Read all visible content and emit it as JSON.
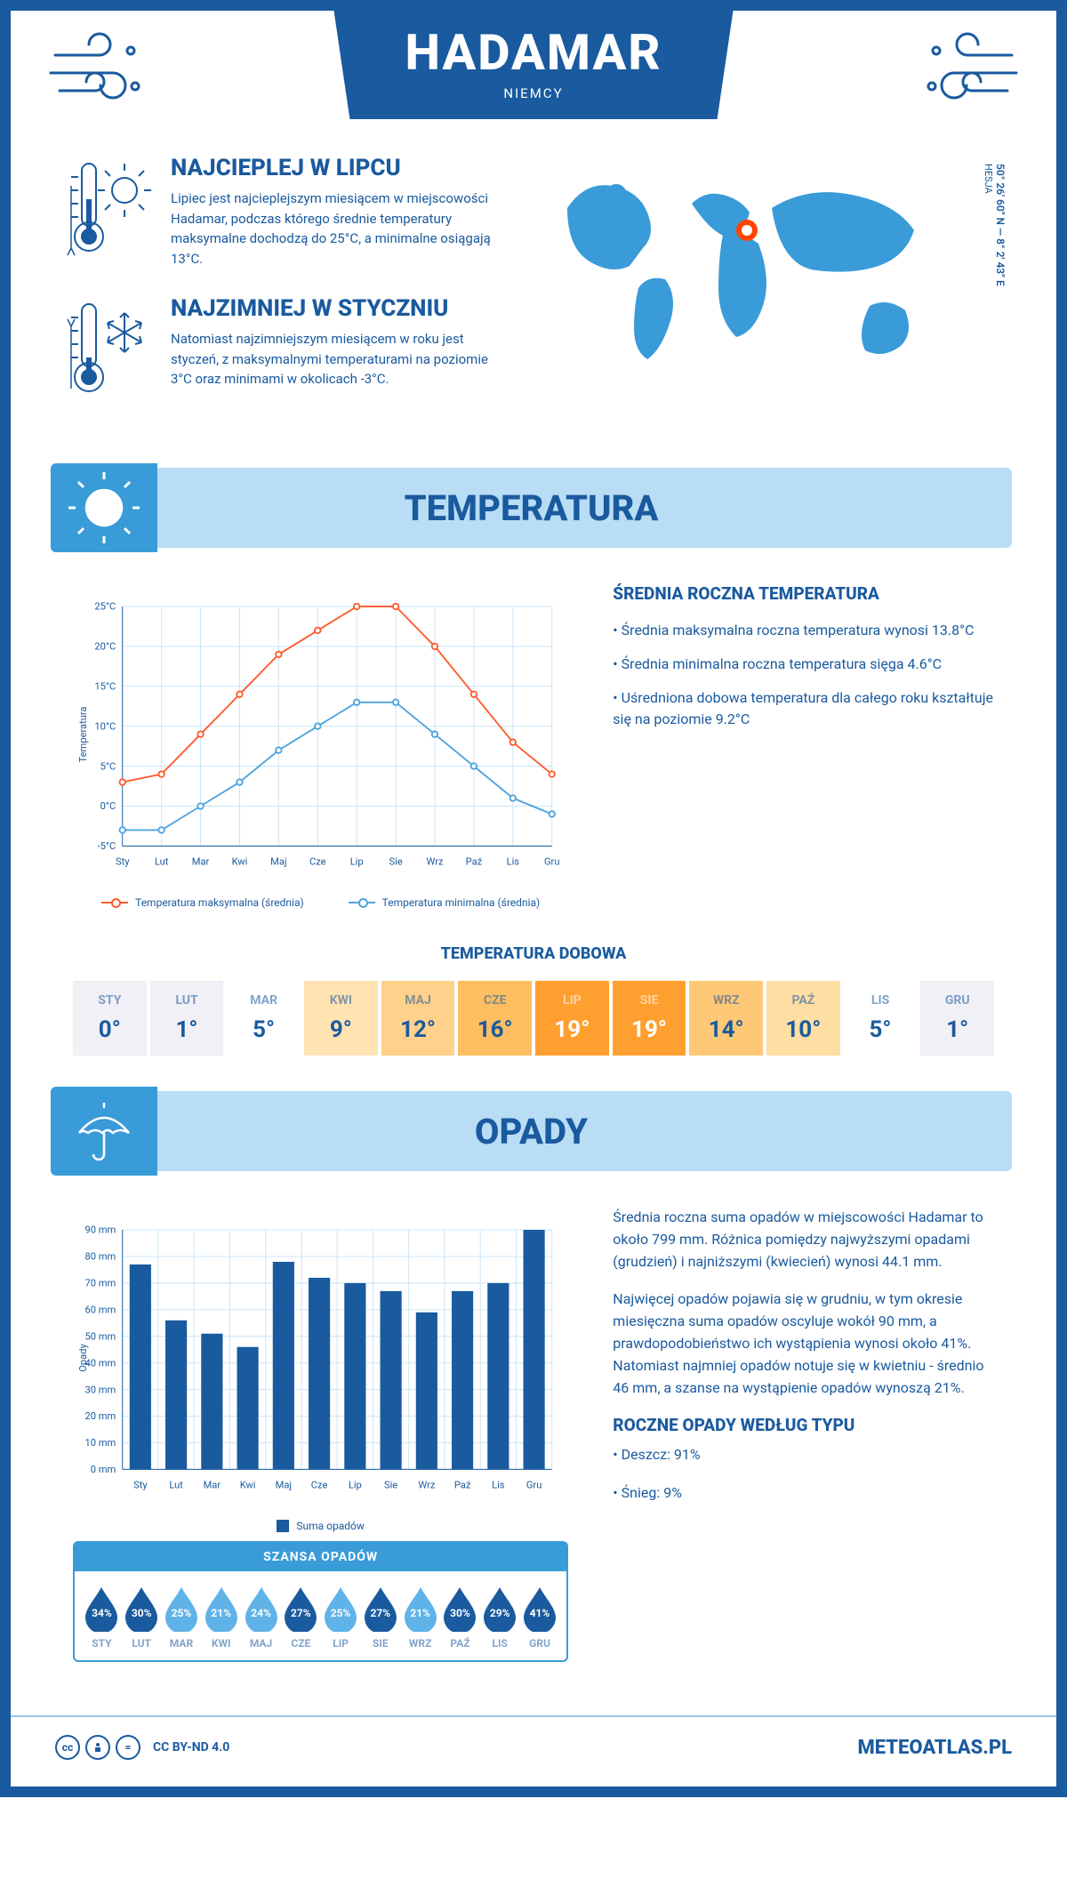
{
  "header": {
    "title": "HADAMAR",
    "subtitle": "NIEMCY"
  },
  "coords": {
    "text": "50° 26' 60\" N — 8° 2' 43\" E",
    "region": "HESJA"
  },
  "facts": {
    "warm": {
      "title": "NAJCIEPLEJ W LIPCU",
      "body": "Lipiec jest najcieplejszym miesiącem w miejscowości Hadamar, podczas którego średnie temperatury maksymalne dochodzą do 25°C, a minimalne osiągają 13°C."
    },
    "cold": {
      "title": "NAJZIMNIEJ W STYCZNIU",
      "body": "Natomiast najzimniejszym miesiącem w roku jest styczeń, z maksymalnymi temperaturami na poziomie 3°C oraz minimami w okolicach -3°C."
    }
  },
  "temperature": {
    "banner_title": "TEMPERATURA",
    "chart": {
      "type": "line",
      "ylabel": "Temperatura",
      "months": [
        "Sty",
        "Lut",
        "Mar",
        "Kwi",
        "Maj",
        "Cze",
        "Lip",
        "Sie",
        "Wrz",
        "Paź",
        "Lis",
        "Gru"
      ],
      "ylim": [
        -5,
        25
      ],
      "ytick_step": 5,
      "ytick_labels": [
        "-5°C",
        "0°C",
        "5°C",
        "10°C",
        "15°C",
        "20°C",
        "25°C"
      ],
      "series_max": {
        "label": "Temperatura maksymalna (średnia)",
        "color": "#ff5a2e",
        "values": [
          3,
          4,
          9,
          14,
          19,
          22,
          25,
          25,
          20,
          14,
          8,
          4
        ]
      },
      "series_min": {
        "label": "Temperatura minimalna (średnia)",
        "color": "#4fa3dd",
        "values": [
          -3,
          -3,
          0,
          3,
          7,
          10,
          13,
          13,
          9,
          5,
          1,
          -1
        ]
      },
      "grid_color": "#c8e3f7",
      "axis_color": "#1a5a9e",
      "background": "#ffffff"
    },
    "summary": {
      "title": "ŚREDNIA ROCZNA TEMPERATURA",
      "bullets": [
        "• Średnia maksymalna roczna temperatura wynosi 13.8°C",
        "• Średnia minimalna roczna temperatura sięga 4.6°C",
        "• Uśredniona dobowa temperatura dla całego roku kształtuje się na poziomie 9.2°C"
      ]
    },
    "daily": {
      "title": "TEMPERATURA DOBOWA",
      "months": [
        "STY",
        "LUT",
        "MAR",
        "KWI",
        "MAJ",
        "CZE",
        "LIP",
        "SIE",
        "WRZ",
        "PAŹ",
        "LIS",
        "GRU"
      ],
      "values": [
        "0°",
        "1°",
        "5°",
        "9°",
        "12°",
        "16°",
        "19°",
        "19°",
        "14°",
        "10°",
        "5°",
        "1°"
      ],
      "bg_colors": [
        "#f1f0f7",
        "#f1f0f7",
        "#ffffff",
        "#ffe3b3",
        "#ffd18a",
        "#ffbe61",
        "#ff9f2f",
        "#ff9f2f",
        "#ffc877",
        "#ffdea3",
        "#ffffff",
        "#f1f0f7"
      ],
      "text_colors": [
        "#1a5a9e",
        "#1a5a9e",
        "#1a5a9e",
        "#1a5a9e",
        "#1a5a9e",
        "#1a5a9e",
        "#ffffff",
        "#ffffff",
        "#1a5a9e",
        "#1a5a9e",
        "#1a5a9e",
        "#1a5a9e"
      ]
    }
  },
  "precip": {
    "banner_title": "OPADY",
    "chart": {
      "type": "bar",
      "ylabel": "Opady",
      "months": [
        "Sty",
        "Lut",
        "Mar",
        "Kwi",
        "Maj",
        "Cze",
        "Lip",
        "Sie",
        "Wrz",
        "Paź",
        "Lis",
        "Gru"
      ],
      "ylim": [
        0,
        90
      ],
      "ytick_step": 10,
      "ytick_labels": [
        "0 mm",
        "10 mm",
        "20 mm",
        "30 mm",
        "40 mm",
        "50 mm",
        "60 mm",
        "70 mm",
        "80 mm",
        "90 mm"
      ],
      "values": [
        77,
        56,
        51,
        46,
        78,
        72,
        70,
        67,
        59,
        67,
        70,
        90
      ],
      "bar_color": "#1a5a9e",
      "legend": "Suma opadów",
      "grid_color": "#c8e3f7",
      "axis_color": "#1a5a9e"
    },
    "text": {
      "p1": "Średnia roczna suma opadów w miejscowości Hadamar to około 799 mm. Różnica pomiędzy najwyższymi opadami (grudzień) i najniższymi (kwiecień) wynosi 44.1 mm.",
      "p2": "Najwięcej opadów pojawia się w grudniu, w tym okresie miesięczna suma opadów oscyluje wokół 90 mm, a prawdopodobieństwo ich wystąpienia wynosi około 41%. Natomiast najmniej opadów notuje się w kwietniu - średnio 46 mm, a szanse na wystąpienie opadów wynoszą 21%."
    },
    "chance": {
      "title": "SZANSA OPADÓW",
      "months": [
        "STY",
        "LUT",
        "MAR",
        "KWI",
        "MAJ",
        "CZE",
        "LIP",
        "SIE",
        "WRZ",
        "PAŹ",
        "LIS",
        "GRU"
      ],
      "values": [
        "34%",
        "30%",
        "25%",
        "21%",
        "24%",
        "27%",
        "25%",
        "27%",
        "21%",
        "30%",
        "29%",
        "41%"
      ],
      "fills": [
        "#1a5a9e",
        "#1a5a9e",
        "#5fb3e8",
        "#5fb3e8",
        "#5fb3e8",
        "#1a5a9e",
        "#5fb3e8",
        "#1a5a9e",
        "#5fb3e8",
        "#1a5a9e",
        "#1a5a9e",
        "#1a5a9e"
      ]
    },
    "by_type": {
      "title": "ROCZNE OPADY WEDŁUG TYPU",
      "items": [
        "• Deszcz: 91%",
        "• Śnieg: 9%"
      ]
    }
  },
  "footer": {
    "license": "CC BY-ND 4.0",
    "site": "METEOATLAS.PL"
  }
}
